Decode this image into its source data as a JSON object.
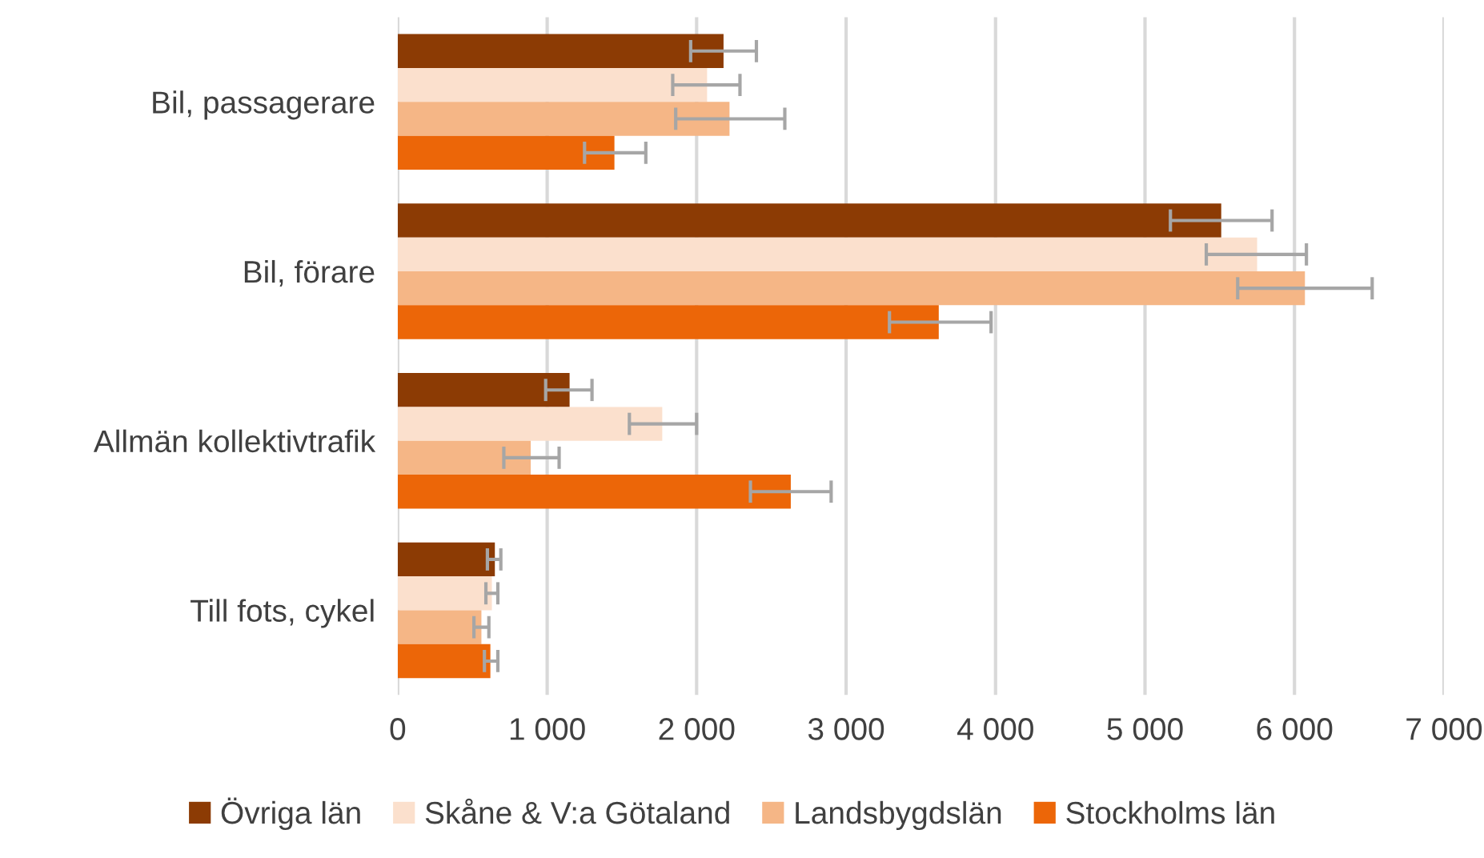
{
  "chart_data": {
    "type": "bar",
    "orientation": "horizontal",
    "categories": [
      "Bil, passagerare",
      "Bil, förare",
      "Allmän kollektivtrafik",
      "Till fots, cykel"
    ],
    "series": [
      {
        "name": "Övriga län",
        "color": "#8c3b04",
        "values": [
          2180,
          5510,
          1150,
          650
        ],
        "errors": [
          [
            1960,
            2400
          ],
          [
            5170,
            5850
          ],
          [
            990,
            1300
          ],
          [
            600,
            690
          ]
        ]
      },
      {
        "name": "Skåne & V:a Götaland",
        "color": "#fbe0cd",
        "values": [
          2070,
          5750,
          1770,
          630
        ],
        "errors": [
          [
            1840,
            2290
          ],
          [
            5410,
            6080
          ],
          [
            1550,
            2000
          ],
          [
            590,
            670
          ]
        ]
      },
      {
        "name": "Landsbygdslän",
        "color": "#f5b686",
        "values": [
          2220,
          6070,
          890,
          560
        ],
        "errors": [
          [
            1860,
            2590
          ],
          [
            5620,
            6520
          ],
          [
            710,
            1080
          ],
          [
            510,
            610
          ]
        ]
      },
      {
        "name": "Stockholms län",
        "color": "#ec6608",
        "values": [
          1450,
          3620,
          2630,
          620
        ],
        "errors": [
          [
            1250,
            1660
          ],
          [
            3290,
            3970
          ],
          [
            2360,
            2900
          ],
          [
            580,
            670
          ]
        ]
      }
    ],
    "xlim": [
      0,
      7000
    ],
    "xticks": [
      {
        "value": 0,
        "label": "0"
      },
      {
        "value": 1000,
        "label": "1 000"
      },
      {
        "value": 2000,
        "label": "2 000"
      },
      {
        "value": 3000,
        "label": "3 000"
      },
      {
        "value": 4000,
        "label": "4 000"
      },
      {
        "value": 5000,
        "label": "5 000"
      },
      {
        "value": 6000,
        "label": "6 000"
      },
      {
        "value": 7000,
        "label": "7 000"
      }
    ],
    "grid": "x",
    "legend": "bottom"
  }
}
